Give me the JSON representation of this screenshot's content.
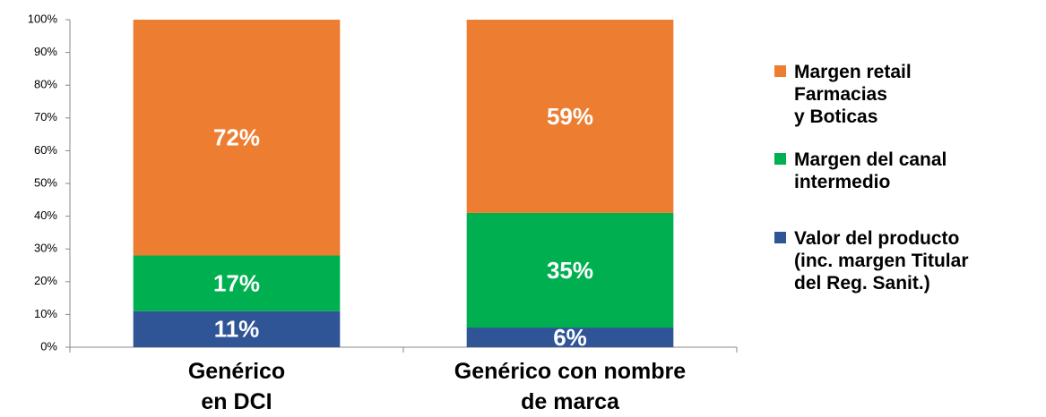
{
  "chart_data": {
    "type": "stacked_bar",
    "categories": [
      "Genérico\nen DCI",
      "Genérico con nombre\nde marca"
    ],
    "series": [
      {
        "name": "Valor del producto\n(inc. margen Titular\ndel Reg. Sanit.)",
        "color": "#2f5597",
        "values": [
          11,
          6
        ],
        "value_labels": [
          "11%",
          "6%"
        ]
      },
      {
        "name": "Margen del canal\nintermedio",
        "color": "#00b050",
        "values": [
          17,
          35
        ],
        "value_labels": [
          "17%",
          "35%"
        ]
      },
      {
        "name": "Margen retail\nFarmacias\ny Boticas",
        "color": "#ed7d31",
        "values": [
          72,
          59
        ],
        "value_labels": [
          "72%",
          "59%"
        ]
      }
    ],
    "ylim": [
      0,
      100
    ],
    "yticks": [
      {
        "value": 0,
        "label": "0%"
      },
      {
        "value": 10,
        "label": "10%"
      },
      {
        "value": 20,
        "label": "20%"
      },
      {
        "value": 30,
        "label": "30%"
      },
      {
        "value": 40,
        "label": "40%"
      },
      {
        "value": 50,
        "label": "50%"
      },
      {
        "value": 60,
        "label": "60%"
      },
      {
        "value": 70,
        "label": "70%"
      },
      {
        "value": 80,
        "label": "80%"
      },
      {
        "value": 90,
        "label": "90%"
      },
      {
        "value": 100,
        "label": "100%"
      }
    ],
    "grid": false,
    "legend": "right"
  }
}
